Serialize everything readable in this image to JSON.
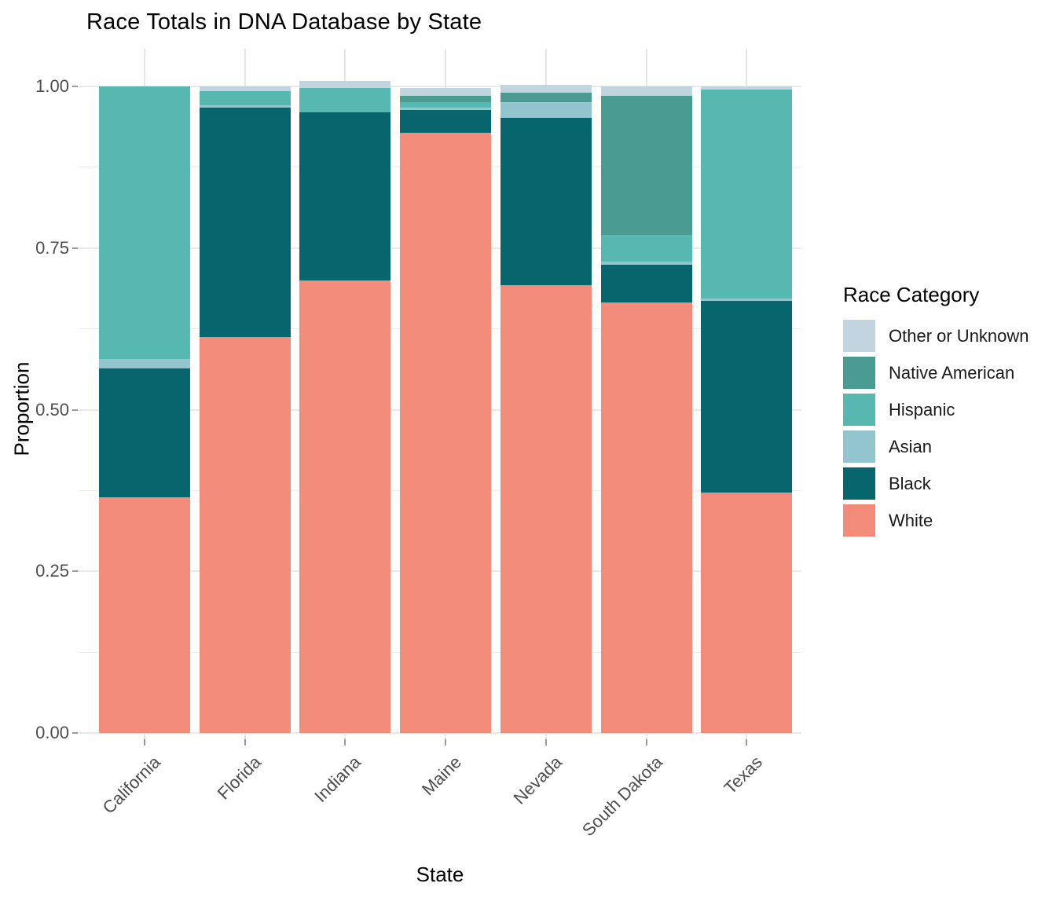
{
  "page": {
    "title": "Race Totals in DNA Database by State"
  },
  "chart_data": {
    "type": "bar",
    "stacked": true,
    "normalized": true,
    "title": "Race Totals in DNA Database by State",
    "xlabel": "State",
    "ylabel": "Proportion",
    "categories": [
      "California",
      "Florida",
      "Indiana",
      "Maine",
      "Nevada",
      "South Dakota",
      "Texas"
    ],
    "y_tick_labels": [
      "0.00",
      "0.25",
      "0.50",
      "0.75",
      "1.00"
    ],
    "y_tick_values": [
      0,
      0.25,
      0.5,
      0.75,
      1.0
    ],
    "minor_gridline_values": [
      0.125,
      0.375,
      0.625,
      0.875
    ],
    "ylim": [
      0,
      1.06
    ],
    "grid": "on",
    "legend_position": "right",
    "legend": {
      "title": "Race Category",
      "items_top_to_bottom": [
        {
          "label": "Other or Unknown",
          "color": "#c2d4de"
        },
        {
          "label": "Native American",
          "color": "#4a9c92"
        },
        {
          "label": "Hispanic",
          "color": "#57b8b0"
        },
        {
          "label": "Asian",
          "color": "#92c5cd"
        },
        {
          "label": "Black",
          "color": "#07666d"
        },
        {
          "label": "White",
          "color": "#f28b79"
        }
      ]
    },
    "series_bottom_up": [
      {
        "name": "White",
        "color": "#f28b79",
        "values": [
          0.365,
          0.612,
          0.7,
          0.928,
          0.693,
          0.666,
          0.372
        ]
      },
      {
        "name": "Black",
        "color": "#07666d",
        "values": [
          0.199,
          0.355,
          0.26,
          0.036,
          0.259,
          0.058,
          0.296
        ]
      },
      {
        "name": "Asian",
        "color": "#92c5cd",
        "values": [
          0.014,
          0.004,
          0.0,
          0.003,
          0.024,
          0.005,
          0.004
        ]
      },
      {
        "name": "Hispanic",
        "color": "#57b8b0",
        "values": [
          0.422,
          0.022,
          0.037,
          0.009,
          0.0,
          0.041,
          0.323
        ]
      },
      {
        "name": "Native American",
        "color": "#4a9c92",
        "values": [
          0.0,
          0.0,
          0.0,
          0.009,
          0.014,
          0.216,
          0.0
        ]
      },
      {
        "name": "Other or Unknown",
        "color": "#c2d4de",
        "values": [
          0.0,
          0.007,
          0.012,
          0.013,
          0.012,
          0.014,
          0.005
        ]
      }
    ],
    "bar_totals": [
      1.0,
      1.0,
      1.009,
      0.998,
      1.002,
      1.0,
      1.0
    ]
  }
}
